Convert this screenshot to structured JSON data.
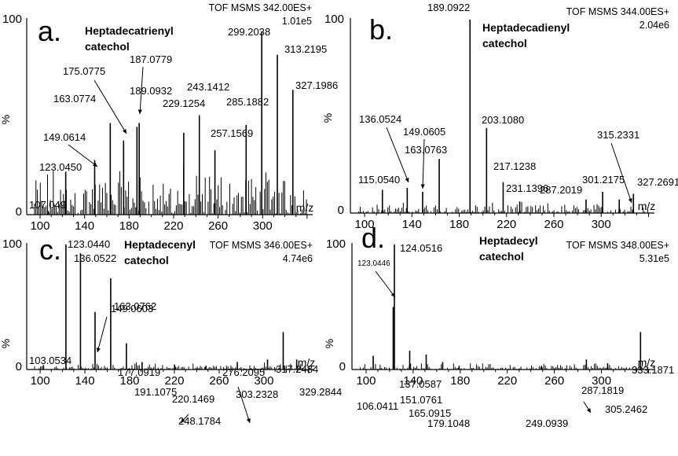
{
  "chart_data": [
    {
      "type": "bar",
      "letter": "a.",
      "compound": [
        "Heptadecatrienyl",
        "catechol"
      ],
      "header": [
        "TOF MSMS 342.00ES+",
        "1.01e5"
      ],
      "xlabel": "m/z",
      "ylabel": "%",
      "xlim": [
        88,
        345
      ],
      "ylim": [
        0,
        100
      ],
      "xticks": [
        "100",
        "140",
        "180",
        "220",
        "260",
        "300"
      ],
      "yticks": [
        "0",
        "100"
      ],
      "labeled_peaks": [
        {
          "mz": 107.049,
          "label": "107.049",
          "intensity": 2
        },
        {
          "mz": 123.045,
          "label": "123.0450",
          "intensity": 22
        },
        {
          "mz": 149.0614,
          "label": "149.0614",
          "intensity": 28
        },
        {
          "mz": 163.0774,
          "label": "163.0774",
          "intensity": 47
        },
        {
          "mz": 175.0775,
          "label": "175.0775",
          "intensity": 38
        },
        {
          "mz": 187.0779,
          "label": "187.0779",
          "intensity": 45
        },
        {
          "mz": 189.0932,
          "label": "189.0932",
          "intensity": 47
        },
        {
          "mz": 229.1254,
          "label": "229.1254",
          "intensity": 42
        },
        {
          "mz": 243.1412,
          "label": "243.1412",
          "intensity": 51
        },
        {
          "mz": 257.1569,
          "label": "257.1569",
          "intensity": 33
        },
        {
          "mz": 285.1882,
          "label": "285.1882",
          "intensity": 46
        },
        {
          "mz": 299.2038,
          "label": "299.2038",
          "intensity": 94
        },
        {
          "mz": 313.2195,
          "label": "313.2195",
          "intensity": 82
        },
        {
          "mz": 327.1986,
          "label": "327.1986",
          "intensity": 64
        }
      ]
    },
    {
      "type": "bar",
      "letter": "b.",
      "compound": [
        "Heptadecadienyl",
        "catechol"
      ],
      "header": [
        "TOF MSMS 344.00ES+",
        "2.04e6"
      ],
      "xlabel": "m/z",
      "ylabel": "%",
      "xlim": [
        88,
        345
      ],
      "ylim": [
        0,
        100
      ],
      "xticks": [
        "100",
        "140",
        "180",
        "220",
        "260",
        "300"
      ],
      "yticks": [
        "0",
        "100"
      ],
      "labeled_peaks": [
        {
          "mz": 115.054,
          "label": "115.0540",
          "intensity": 12
        },
        {
          "mz": 136.0524,
          "label": "136.0524",
          "intensity": 13
        },
        {
          "mz": 149.0605,
          "label": "149.0605",
          "intensity": 11
        },
        {
          "mz": 163.0763,
          "label": "163.0763",
          "intensity": 28
        },
        {
          "mz": 189.0922,
          "label": "189.0922",
          "intensity": 100
        },
        {
          "mz": 203.108,
          "label": "203.1080",
          "intensity": 44
        },
        {
          "mz": 217.1238,
          "label": "217.1238",
          "intensity": 16
        },
        {
          "mz": 231.1396,
          "label": "231.1396",
          "intensity": 6
        },
        {
          "mz": 287.2019,
          "label": "287.2019",
          "intensity": 7
        },
        {
          "mz": 301.2175,
          "label": "301.2175",
          "intensity": 11
        },
        {
          "mz": 315.2331,
          "label": "315.2331",
          "intensity": 7
        },
        {
          "mz": 327.2691,
          "label": "327.2691",
          "intensity": 10
        }
      ]
    },
    {
      "type": "bar",
      "letter": "c.",
      "compound": [
        "Heptadecenyl",
        "catechol"
      ],
      "header": [
        "TOF MSMS 346.00ES+",
        "4.74e6"
      ],
      "xlabel": "m/z",
      "ylabel": "%",
      "xlim": [
        88,
        345
      ],
      "ylim": [
        0,
        100
      ],
      "xticks": [
        "100",
        "140",
        "180",
        "220",
        "260",
        "300"
      ],
      "yticks": [
        "0",
        "100"
      ],
      "labeled_peaks": [
        {
          "mz": 103.0534,
          "label": "103.0534",
          "intensity": 3
        },
        {
          "mz": 123.044,
          "label": "123.0440",
          "intensity": 100
        },
        {
          "mz": 136.0522,
          "label": "136.0522",
          "intensity": 93
        },
        {
          "mz": 149.0603,
          "label": "149.0603",
          "intensity": 46
        },
        {
          "mz": 163.0762,
          "label": "163.0762",
          "intensity": 73
        },
        {
          "mz": 177.0919,
          "label": "177.0919",
          "intensity": 21
        },
        {
          "mz": 191.1075,
          "label": "191.1075",
          "intensity": 6
        },
        {
          "mz": 220.1469,
          "label": "220.1469",
          "intensity": 4
        },
        {
          "mz": 248.1784,
          "label": "248.1784",
          "intensity": 3
        },
        {
          "mz": 276.2095,
          "label": "276.2095",
          "intensity": 6
        },
        {
          "mz": 303.2328,
          "label": "303.2328",
          "intensity": 8
        },
        {
          "mz": 317.2484,
          "label": "317.2484",
          "intensity": 30
        },
        {
          "mz": 329.2844,
          "label": "329.2844",
          "intensity": 8
        }
      ]
    },
    {
      "type": "bar",
      "letter": "d.",
      "compound": [
        "Heptadecyl",
        "catechol"
      ],
      "header": [
        "TOF MSMS 348.00ES+",
        "5.31e5"
      ],
      "xlabel": "m/z",
      "ylabel": "%",
      "xlim": [
        88,
        345
      ],
      "ylim": [
        0,
        100
      ],
      "xticks": [
        "100",
        "140",
        "180",
        "220",
        "260",
        "300"
      ],
      "yticks": [
        "0",
        "100"
      ],
      "labeled_peaks": [
        {
          "mz": 106.0411,
          "label": "106.0411",
          "intensity": 11
        },
        {
          "mz": 123.0446,
          "label": "123.0446",
          "intensity": 50
        },
        {
          "mz": 124.0516,
          "label": "124.0516",
          "intensity": 100
        },
        {
          "mz": 137.0587,
          "label": "137.0587",
          "intensity": 15
        },
        {
          "mz": 151.0761,
          "label": "151.0761",
          "intensity": 12
        },
        {
          "mz": 165.0915,
          "label": "165.0915",
          "intensity": 6
        },
        {
          "mz": 179.1048,
          "label": "179.1048",
          "intensity": 3
        },
        {
          "mz": 249.0939,
          "label": "249.0939",
          "intensity": 3
        },
        {
          "mz": 287.1819,
          "label": "287.1819",
          "intensity": 8
        },
        {
          "mz": 305.2462,
          "label": "305.2462",
          "intensity": 5
        },
        {
          "mz": 333.1871,
          "label": "333.1871",
          "intensity": 30
        }
      ]
    }
  ]
}
